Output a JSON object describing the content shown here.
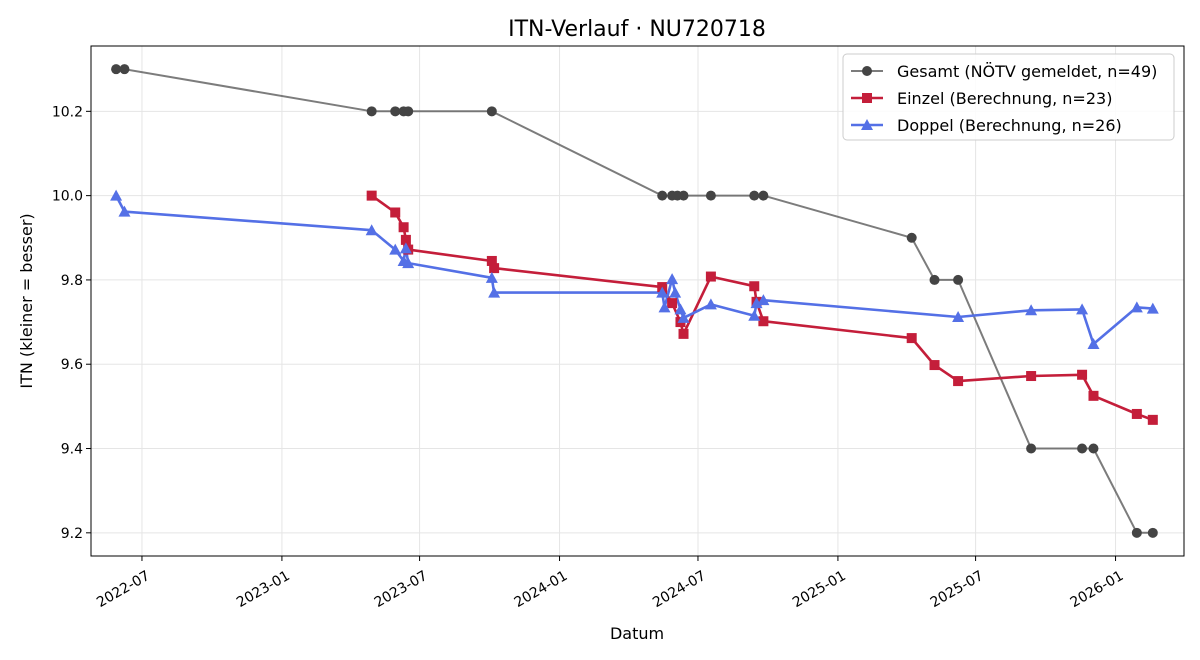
{
  "chart_data": {
    "type": "line",
    "title": "ITN-Verlauf · NU720718",
    "xlabel": "Datum",
    "ylabel": "ITN  (kleiner = besser)",
    "xlim": [
      "2022-04-25",
      "2026-04-01"
    ],
    "ylim": [
      9.145,
      10.355
    ],
    "x_ticks": [
      "2022-07",
      "2023-01",
      "2023-07",
      "2024-01",
      "2024-07",
      "2025-01",
      "2025-07",
      "2026-01"
    ],
    "y_ticks": [
      9.2,
      9.4,
      9.6,
      9.8,
      10.0,
      10.2
    ],
    "grid": true,
    "legend_position": "top-right",
    "series": [
      {
        "name": "Gesamt (NÖTV gemeldet, n=49)",
        "color": "#505050",
        "marker": "circle",
        "points": [
          [
            "2022-05-28",
            10.3
          ],
          [
            "2022-06-08",
            10.3
          ],
          [
            "2023-04-29",
            10.2
          ],
          [
            "2023-05-30",
            10.2
          ],
          [
            "2023-06-10",
            10.2
          ],
          [
            "2023-06-16",
            10.2
          ],
          [
            "2023-10-04",
            10.2
          ],
          [
            "2024-05-15",
            10.0
          ],
          [
            "2024-05-28",
            10.0
          ],
          [
            "2024-06-04",
            10.0
          ],
          [
            "2024-06-12",
            10.0
          ],
          [
            "2024-07-18",
            10.0
          ],
          [
            "2024-09-13",
            10.0
          ],
          [
            "2024-09-25",
            10.0
          ],
          [
            "2025-04-08",
            9.9
          ],
          [
            "2025-05-08",
            9.8
          ],
          [
            "2025-06-08",
            9.8
          ],
          [
            "2025-09-12",
            9.4
          ],
          [
            "2025-11-18",
            9.4
          ],
          [
            "2025-12-03",
            9.4
          ],
          [
            "2026-01-29",
            9.2
          ],
          [
            "2026-02-19",
            9.2
          ]
        ]
      },
      {
        "name": "Einzel (Berechnung, n=23)",
        "color": "#c41e3a",
        "marker": "square",
        "points": [
          [
            "2023-04-29",
            10.0
          ],
          [
            "2023-05-30",
            9.96
          ],
          [
            "2023-06-10",
            9.925
          ],
          [
            "2023-06-13",
            9.895
          ],
          [
            "2023-06-16",
            9.872
          ],
          [
            "2023-10-04",
            9.845
          ],
          [
            "2023-10-07",
            9.828
          ],
          [
            "2024-05-15",
            9.783
          ],
          [
            "2024-05-28",
            9.745
          ],
          [
            "2024-06-08",
            9.7
          ],
          [
            "2024-06-12",
            9.672
          ],
          [
            "2024-07-18",
            9.808
          ],
          [
            "2024-09-13",
            9.785
          ],
          [
            "2024-09-16",
            9.748
          ],
          [
            "2024-09-25",
            9.702
          ],
          [
            "2025-04-08",
            9.662
          ],
          [
            "2025-05-08",
            9.598
          ],
          [
            "2025-06-08",
            9.56
          ],
          [
            "2025-09-12",
            9.572
          ],
          [
            "2025-11-18",
            9.575
          ],
          [
            "2025-12-03",
            9.525
          ],
          [
            "2026-01-29",
            9.482
          ],
          [
            "2026-02-19",
            9.468
          ]
        ]
      },
      {
        "name": "Doppel (Berechnung, n=26)",
        "color": "#5470e6",
        "marker": "triangle",
        "points": [
          [
            "2022-05-28",
            10.0
          ],
          [
            "2022-06-08",
            9.962
          ],
          [
            "2023-04-29",
            9.918
          ],
          [
            "2023-05-30",
            9.872
          ],
          [
            "2023-06-10",
            9.845
          ],
          [
            "2023-06-13",
            9.875
          ],
          [
            "2023-06-16",
            9.84
          ],
          [
            "2023-10-04",
            9.805
          ],
          [
            "2023-10-07",
            9.77
          ],
          [
            "2024-05-15",
            9.77
          ],
          [
            "2024-05-18",
            9.735
          ],
          [
            "2024-05-28",
            9.802
          ],
          [
            "2024-06-01",
            9.77
          ],
          [
            "2024-06-08",
            9.73
          ],
          [
            "2024-06-12",
            9.71
          ],
          [
            "2024-07-18",
            9.742
          ],
          [
            "2024-09-13",
            9.715
          ],
          [
            "2024-09-16",
            9.745
          ],
          [
            "2024-09-25",
            9.752
          ],
          [
            "2025-06-08",
            9.712
          ],
          [
            "2025-09-12",
            9.728
          ],
          [
            "2025-11-18",
            9.73
          ],
          [
            "2025-12-03",
            9.648
          ],
          [
            "2026-01-29",
            9.735
          ],
          [
            "2026-02-19",
            9.732
          ]
        ]
      }
    ]
  }
}
